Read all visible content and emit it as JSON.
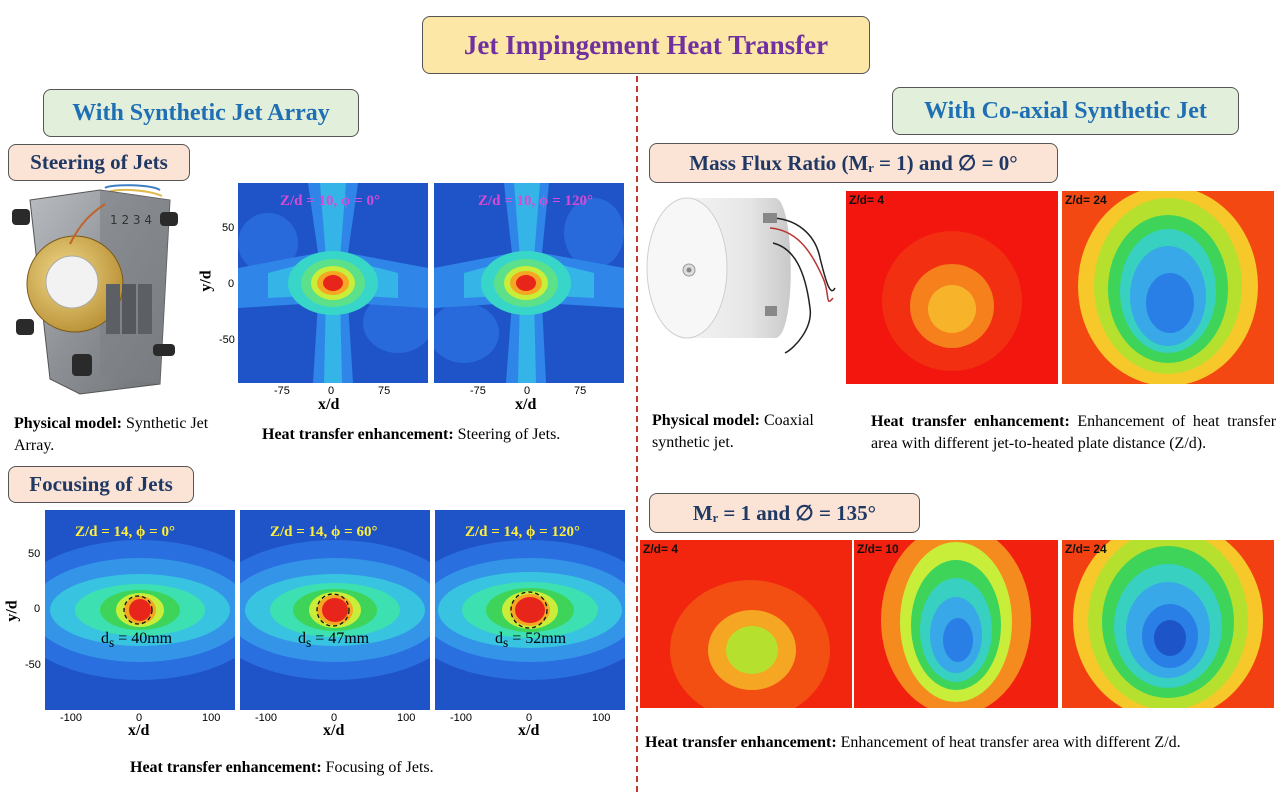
{
  "title": "Jet Impingement Heat Transfer",
  "left": {
    "heading": "With Synthetic Jet Array",
    "steering": {
      "heading": "Steering of Jets",
      "physical_caption_bold": "Physical model:",
      "physical_caption_text": "Synthetic Jet Array.",
      "panels": [
        {
          "label": "Z/d = 10, ϕ = 0°"
        },
        {
          "label": "Z/d = 10, ϕ = 120°"
        }
      ],
      "ylabel": "y/d",
      "xlabel": "x/d",
      "y_ticks": [
        "50",
        "0",
        "-50"
      ],
      "x_ticks": [
        "-75",
        "0",
        "75"
      ],
      "caption_bold": "Heat transfer enhancement:",
      "caption_text": "Steering of Jets."
    },
    "focusing": {
      "heading": "Focusing of Jets",
      "panels": [
        {
          "label": "Z/d = 14, ϕ = 0°",
          "ds": "40mm"
        },
        {
          "label": "Z/d = 14, ϕ = 60°",
          "ds": "47mm"
        },
        {
          "label": "Z/d = 14, ϕ = 120°",
          "ds": "52mm"
        }
      ],
      "ds_prefix": "d",
      "ds_sub": "s",
      "ds_eq": " = ",
      "ylabel": "y/d",
      "xlabel": "x/d",
      "y_ticks": [
        "50",
        "0",
        "-50"
      ],
      "x_ticks": [
        "-100",
        "0",
        "100"
      ],
      "caption_bold": "Heat transfer enhancement:",
      "caption_text": "Focusing of Jets."
    }
  },
  "right": {
    "heading": "With Co-axial Synthetic Jet",
    "mass_flux": {
      "heading": "Mass Flux Ratio (Mᵣ = 1) and ∅ = 0°",
      "images": [
        {
          "label": "Z/d= 4"
        },
        {
          "label": "Z/d= 24"
        }
      ],
      "physical_caption_bold": "Physical model:",
      "physical_caption_text": "Coaxial synthetic jet.",
      "caption_bold": "Heat transfer enhancement:",
      "caption_text": "Enhancement of heat transfer area with different jet-to-heated plate distance (Z/d)."
    },
    "second": {
      "heading": "Mᵣ = 1 and ∅ = 135°",
      "images": [
        {
          "label": "Z/d= 4"
        },
        {
          "label": "Z/d= 10"
        },
        {
          "label": "Z/d= 24"
        }
      ],
      "caption_bold": "Heat transfer enhancement:",
      "caption_text": "Enhancement of heat transfer area with different Z/d."
    }
  },
  "colors": {
    "title_fill": "#fce7a6",
    "title_text": "#7030a0",
    "section_fill": "#e2efda",
    "section_text": "#1f6fb5",
    "sub_fill": "#fbe4d5",
    "sub_text": "#1f3864",
    "divider": "#c0392b"
  }
}
